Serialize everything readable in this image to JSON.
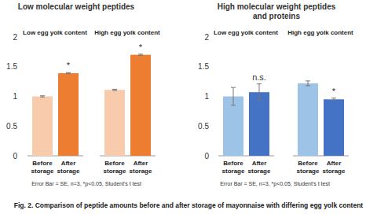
{
  "chart_data": [
    {
      "type": "bar",
      "title": "Low molecular weight peptides",
      "groups": [
        "Low egg yolk content",
        "High egg yolk content"
      ],
      "categories": [
        "Before storage",
        "After storage",
        "Before storage",
        "After storage"
      ],
      "values": [
        1.0,
        1.39,
        1.11,
        1.7
      ],
      "errors": [
        0.01,
        0.01,
        0.01,
        0.01
      ],
      "significance": [
        null,
        "*",
        null,
        "*"
      ],
      "colors": [
        "#f8cbad",
        "#ed7d31",
        "#f8cbad",
        "#ed7d31"
      ],
      "ylim": [
        0,
        2
      ],
      "yticks": [
        0,
        0.5,
        1,
        1.5,
        2
      ],
      "note": "Error Bar = SE, n=3, *p<0.05, Student's t test"
    },
    {
      "type": "bar",
      "title": "High molecular weight peptides and proteins",
      "groups": [
        "Low egg yolk content",
        "High egg yolk content"
      ],
      "categories": [
        "Before storage",
        "After storage",
        "Before storage",
        "After storage"
      ],
      "values": [
        1.0,
        1.07,
        1.22,
        0.95
      ],
      "errors": [
        0.15,
        0.14,
        0.04,
        0.02
      ],
      "significance": [
        null,
        "n.s.",
        null,
        "*"
      ],
      "colors": [
        "#9dc3e6",
        "#4472c4",
        "#9dc3e6",
        "#4472c4"
      ],
      "ylim": [
        0,
        2
      ],
      "yticks": [
        0,
        0.5,
        1,
        1.5,
        2
      ],
      "note": "Error Bar = SE, n=3, *p<0.05, Student's t test"
    }
  ],
  "caption": "Fig. 2. Comparison of peptide amounts before and after storage of mayonnaise with differing egg yolk content"
}
